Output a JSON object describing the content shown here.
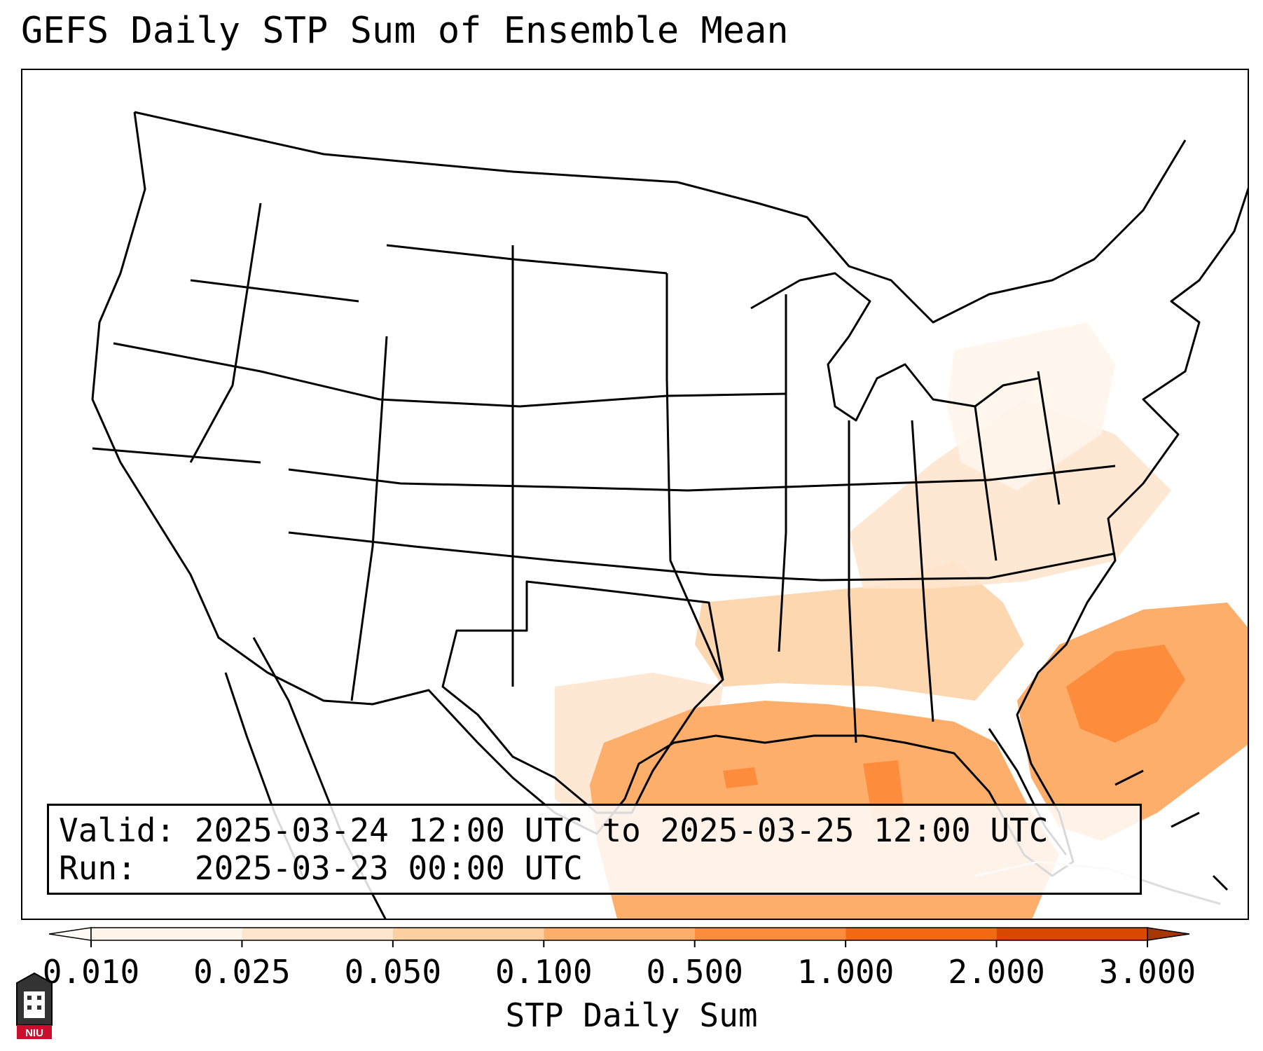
{
  "title": "GEFS Daily STP Sum of Ensemble Mean",
  "info": {
    "valid_label": "Valid:",
    "valid_text": "2025-03-24 12:00 UTC to 2025-03-25 12:00 UTC",
    "run_label": "Run:",
    "run_text": "2025-03-23 00:00 UTC"
  },
  "colorbar": {
    "label": "STP Daily Sum",
    "ticks": [
      "0.010",
      "0.025",
      "0.050",
      "0.100",
      "0.500",
      "1.000",
      "2.000",
      "3.000"
    ],
    "colors": [
      "#fff5eb",
      "#fee6ce",
      "#fdd0a2",
      "#fdae6b",
      "#fd8d3c",
      "#f16913",
      "#d94801"
    ],
    "under_color": "#fffaf5",
    "over_color": "#a63603",
    "extend": "both"
  },
  "map": {
    "region": "Continental United States",
    "shading_levels": [
      0.01,
      0.025,
      0.05,
      0.1,
      0.5,
      1.0,
      2.0,
      3.0
    ],
    "shaded_areas": [
      {
        "name": "gulf-of-mexico",
        "level": 0.1
      },
      {
        "name": "northeast-gulf-core",
        "level": 0.5
      },
      {
        "name": "central-gulf-core",
        "level": 0.5
      },
      {
        "name": "atlantic-off-southeast-coast",
        "level": 0.1
      },
      {
        "name": "atlantic-core",
        "level": 0.5
      },
      {
        "name": "gulf-coast-states",
        "level": 0.05
      },
      {
        "name": "southeast-fringe",
        "level": 0.025
      },
      {
        "name": "mid-atlantic-fringe",
        "level": 0.01
      },
      {
        "name": "south-texas-fringe",
        "level": 0.025
      }
    ]
  },
  "logo": {
    "text": "NIU"
  }
}
